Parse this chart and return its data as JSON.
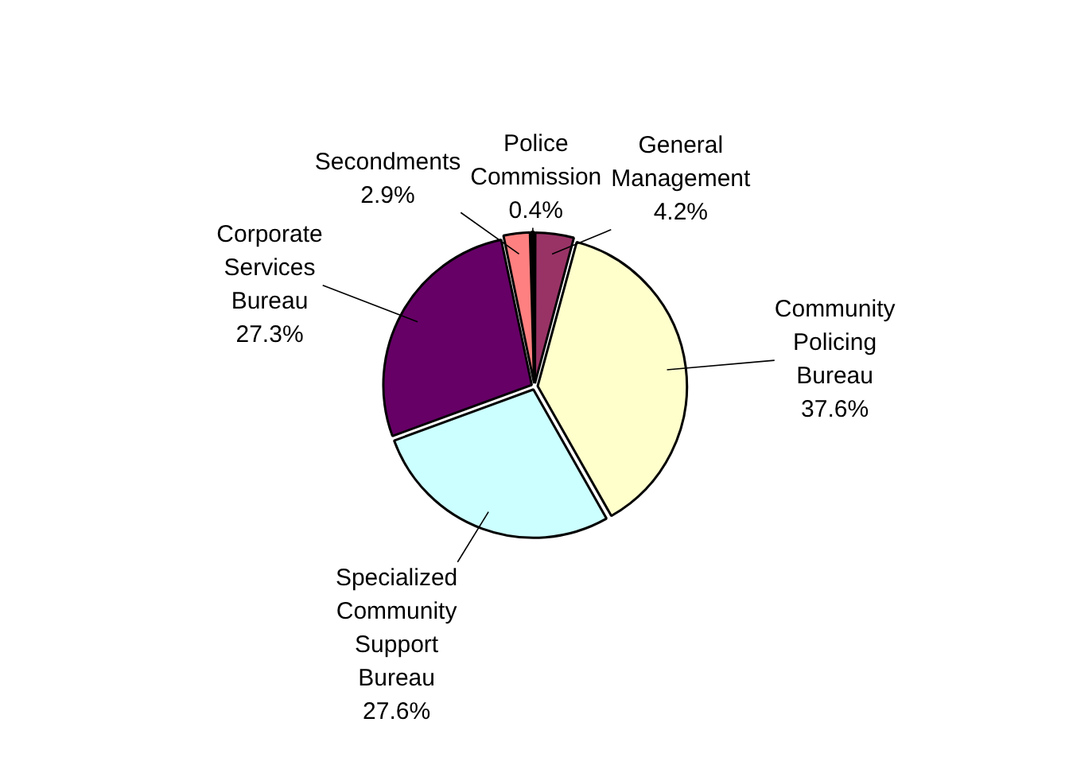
{
  "chart_data": {
    "type": "pie",
    "categories": [
      "General Management",
      "Community Policing Bureau",
      "Specialized Community Support Bureau",
      "Corporate Services Bureau",
      "Secondments",
      "Police Commission"
    ],
    "values": [
      4.2,
      37.6,
      27.6,
      27.3,
      2.9,
      0.4
    ],
    "value_labels": [
      "4.2%",
      "37.6%",
      "27.6%",
      "27.3%",
      "2.9%",
      "0.4%"
    ],
    "colors": [
      "#993366",
      "#ffffcc",
      "#ccffff",
      "#660066",
      "#ff8080",
      "#333366"
    ],
    "legend": false
  }
}
